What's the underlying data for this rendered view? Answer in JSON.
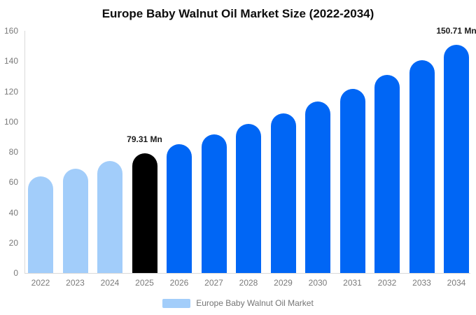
{
  "title": "Europe Baby Walnut Oil Market Size (2022-2034)",
  "legend": {
    "label": "Europe Baby Walnut Oil Market",
    "swatch_color": "#a2cdfa"
  },
  "colors": {
    "light_blue": "#a2cdfa",
    "bright_blue": "#0066f5",
    "highlight_black": "#000000",
    "axis_line": "#d9d9d9",
    "tick_text": "#7a7a7a",
    "annotation_text": "#1b1b1b"
  },
  "chart_data": {
    "type": "bar",
    "title": "Europe Baby Walnut Oil Market Size (2022-2034)",
    "categories": [
      "2022",
      "2023",
      "2024",
      "2025",
      "2026",
      "2027",
      "2028",
      "2029",
      "2030",
      "2031",
      "2032",
      "2033",
      "2034"
    ],
    "values": [
      64.0,
      68.8,
      73.9,
      79.31,
      85.2,
      91.5,
      98.3,
      105.5,
      113.3,
      121.7,
      130.7,
      140.4,
      150.71
    ],
    "bar_colors": [
      "#a2cdfa",
      "#a2cdfa",
      "#a2cdfa",
      "#000000",
      "#0066f5",
      "#0066f5",
      "#0066f5",
      "#0066f5",
      "#0066f5",
      "#0066f5",
      "#0066f5",
      "#0066f5",
      "#0066f5"
    ],
    "annotations": [
      {
        "category": "2025",
        "label": "79.31 Mn"
      },
      {
        "category": "2034",
        "label": "150.71 Mn"
      }
    ],
    "xlabel": "",
    "ylabel": "",
    "ylim": [
      0,
      160
    ],
    "yticks": [
      0,
      20,
      40,
      60,
      80,
      100,
      120,
      140,
      160
    ],
    "grid": false,
    "legend": [
      "Europe Baby Walnut Oil Market"
    ],
    "legend_position": "bottom-center"
  }
}
